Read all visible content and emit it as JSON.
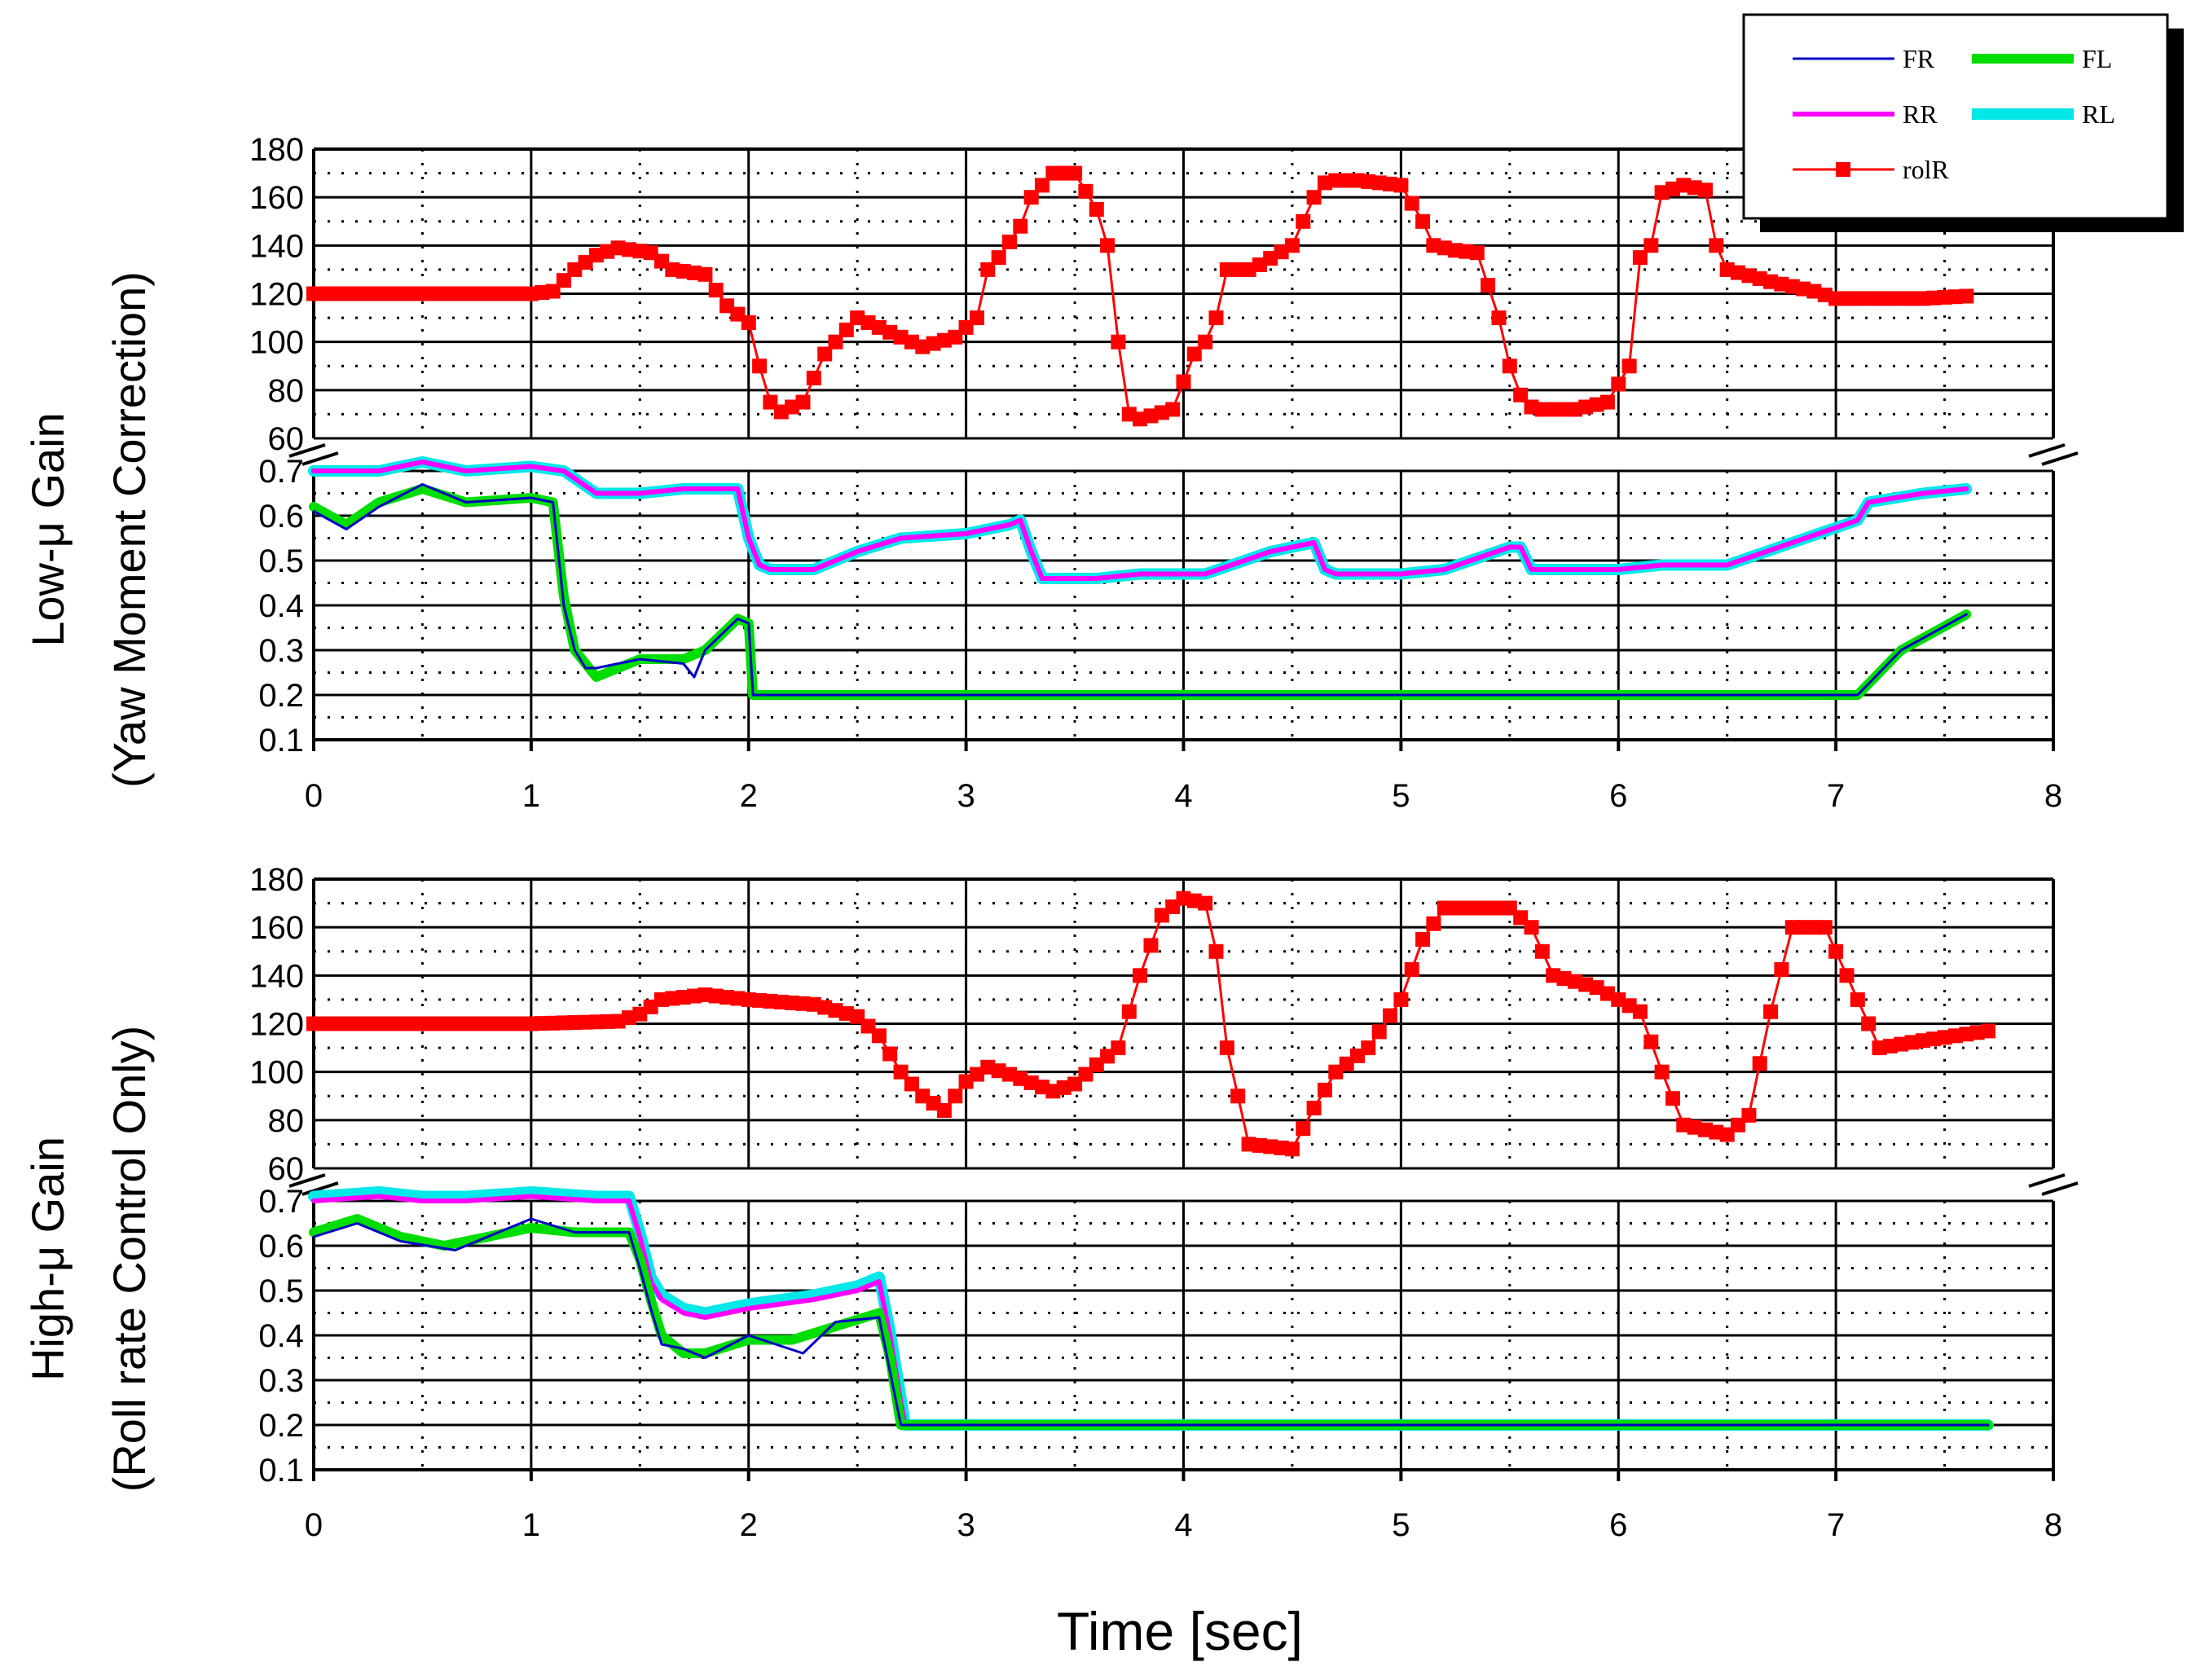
{
  "colors": {
    "FR": "#0000c8",
    "FL": "#00dd00",
    "RR": "#ff00ff",
    "RL": "#00e8e8",
    "rolR": "#ff0000"
  },
  "chart_data": {
    "type": "line",
    "xlabel": "Time [sec]",
    "xlim": [
      0,
      8
    ],
    "xticks": [
      0,
      1,
      2,
      3,
      4,
      5,
      6,
      7,
      8
    ],
    "grid": true,
    "legend": {
      "placement": "top-right",
      "entries": [
        "FR",
        "FL",
        "RR",
        "RL",
        "rolR"
      ]
    },
    "panels": [
      {
        "ylabel_line1": "Low-μ Gain",
        "ylabel_line2": "(Yaw Moment Correction)",
        "upper_axis": {
          "ylim": [
            60,
            180
          ],
          "yticks": [
            60,
            80,
            100,
            120,
            140,
            160,
            180
          ]
        },
        "lower_axis": {
          "ylim": [
            0.1,
            0.7
          ],
          "yticks": [
            0.1,
            0.2,
            0.3,
            0.4,
            0.5,
            0.6,
            0.7
          ]
        },
        "series": [
          {
            "name": "rolR",
            "axis": "upper",
            "x": [
              0,
              0.5,
              1.0,
              1.1,
              1.2,
              1.3,
              1.4,
              1.55,
              1.65,
              1.8,
              1.9,
              2.0,
              2.05,
              2.1,
              2.15,
              2.25,
              2.35,
              2.5,
              2.65,
              2.8,
              2.95,
              3.05,
              3.1,
              3.15,
              3.25,
              3.3,
              3.4,
              3.5,
              3.6,
              3.65,
              3.7,
              3.75,
              3.8,
              3.95,
              4.05,
              4.1,
              4.15,
              4.2,
              4.3,
              4.35,
              4.5,
              4.55,
              4.6,
              4.65,
              4.7,
              4.8,
              5.0,
              5.1,
              5.15,
              5.25,
              5.35,
              5.45,
              5.5,
              5.55,
              5.6,
              5.65,
              5.8,
              5.95,
              6.05,
              6.1,
              6.15,
              6.2,
              6.3,
              6.4,
              6.45,
              6.5,
              6.7,
              6.9,
              7.0,
              7.2,
              7.4,
              7.6
            ],
            "y": [
              120,
              120,
              120,
              121,
              130,
              136,
              139,
              137,
              130,
              128,
              115,
              108,
              90,
              75,
              71,
              75,
              95,
              110,
              104,
              98,
              102,
              110,
              130,
              135,
              148,
              160,
              170,
              170,
              155,
              140,
              100,
              70,
              68,
              72,
              95,
              100,
              110,
              130,
              130,
              132,
              140,
              150,
              160,
              166,
              167,
              167,
              165,
              150,
              140,
              138,
              137,
              110,
              90,
              78,
              73,
              72,
              72,
              75,
              90,
              135,
              140,
              162,
              165,
              163,
              140,
              130,
              125,
              121,
              118,
              118,
              118,
              119
            ]
          },
          {
            "name": "RR",
            "axis": "lower",
            "x": [
              0,
              0.3,
              0.5,
              0.7,
              1.0,
              1.15,
              1.3,
              1.5,
              1.7,
              1.95,
              2.0,
              2.05,
              2.1,
              2.3,
              2.5,
              2.7,
              3.0,
              3.2,
              3.25,
              3.3,
              3.35,
              3.6,
              3.8,
              4.1,
              4.4,
              4.6,
              4.65,
              4.7,
              5.0,
              5.2,
              5.5,
              5.55,
              5.6,
              6.0,
              6.2,
              6.3,
              6.5,
              6.8,
              7.1,
              7.15,
              7.4,
              7.6
            ],
            "y": [
              0.7,
              0.7,
              0.72,
              0.7,
              0.71,
              0.7,
              0.65,
              0.65,
              0.66,
              0.66,
              0.55,
              0.49,
              0.48,
              0.48,
              0.52,
              0.55,
              0.56,
              0.58,
              0.59,
              0.52,
              0.46,
              0.46,
              0.47,
              0.47,
              0.52,
              0.54,
              0.48,
              0.47,
              0.47,
              0.48,
              0.53,
              0.53,
              0.48,
              0.48,
              0.49,
              0.49,
              0.49,
              0.54,
              0.59,
              0.63,
              0.65,
              0.66
            ]
          },
          {
            "name": "RL",
            "axis": "lower",
            "x": [
              0,
              0.3,
              0.5,
              0.7,
              1.0,
              1.15,
              1.3,
              1.5,
              1.7,
              1.95,
              2.0,
              2.05,
              2.1,
              2.3,
              2.5,
              2.7,
              3.0,
              3.2,
              3.25,
              3.3,
              3.35,
              3.6,
              3.8,
              4.1,
              4.4,
              4.6,
              4.65,
              4.7,
              5.0,
              5.2,
              5.5,
              5.55,
              5.6,
              6.0,
              6.2,
              6.3,
              6.5,
              6.8,
              7.1,
              7.15,
              7.4,
              7.6
            ],
            "y": [
              0.7,
              0.7,
              0.72,
              0.7,
              0.71,
              0.7,
              0.65,
              0.65,
              0.66,
              0.66,
              0.55,
              0.49,
              0.48,
              0.48,
              0.52,
              0.55,
              0.56,
              0.58,
              0.59,
              0.52,
              0.46,
              0.46,
              0.47,
              0.47,
              0.52,
              0.54,
              0.48,
              0.47,
              0.47,
              0.48,
              0.53,
              0.53,
              0.48,
              0.48,
              0.49,
              0.49,
              0.49,
              0.54,
              0.59,
              0.63,
              0.65,
              0.66
            ]
          },
          {
            "name": "FL",
            "axis": "lower",
            "x": [
              0,
              0.15,
              0.3,
              0.5,
              0.7,
              1.0,
              1.1,
              1.15,
              1.2,
              1.25,
              1.3,
              1.5,
              1.7,
              1.8,
              1.95,
              2.0,
              2.02,
              7.1,
              7.3,
              7.6
            ],
            "y": [
              0.62,
              0.58,
              0.63,
              0.66,
              0.63,
              0.64,
              0.63,
              0.42,
              0.3,
              0.27,
              0.24,
              0.28,
              0.28,
              0.3,
              0.37,
              0.36,
              0.2,
              0.2,
              0.3,
              0.38
            ]
          },
          {
            "name": "FR",
            "axis": "lower",
            "x": [
              0,
              0.15,
              0.3,
              0.5,
              0.7,
              1.0,
              1.1,
              1.15,
              1.2,
              1.25,
              1.3,
              1.5,
              1.7,
              1.75,
              1.8,
              1.95,
              2.0,
              2.02,
              7.1,
              7.3,
              7.6
            ],
            "y": [
              0.61,
              0.57,
              0.62,
              0.67,
              0.63,
              0.64,
              0.63,
              0.4,
              0.3,
              0.26,
              0.26,
              0.28,
              0.27,
              0.24,
              0.3,
              0.37,
              0.36,
              0.2,
              0.2,
              0.3,
              0.38
            ]
          }
        ]
      },
      {
        "ylabel_line1": "High-μ Gain",
        "ylabel_line2": "(Roll rate Control Only)",
        "upper_axis": {
          "ylim": [
            60,
            180
          ],
          "yticks": [
            60,
            80,
            100,
            120,
            140,
            160,
            180
          ]
        },
        "lower_axis": {
          "ylim": [
            0.1,
            0.7
          ],
          "yticks": [
            0.1,
            0.2,
            0.3,
            0.4,
            0.5,
            0.6,
            0.7
          ]
        },
        "series": [
          {
            "name": "rolR",
            "axis": "upper",
            "x": [
              0,
              0.5,
              1.0,
              1.4,
              1.5,
              1.6,
              1.8,
              2.0,
              2.3,
              2.5,
              2.6,
              2.7,
              2.8,
              2.9,
              3.0,
              3.1,
              3.2,
              3.4,
              3.5,
              3.6,
              3.7,
              3.8,
              3.9,
              4.0,
              4.1,
              4.15,
              4.2,
              4.3,
              4.5,
              4.6,
              4.7,
              4.85,
              5.0,
              5.1,
              5.2,
              5.5,
              5.6,
              5.7,
              5.9,
              6.1,
              6.2,
              6.3,
              6.5,
              6.6,
              6.7,
              6.8,
              6.95,
              7.0,
              7.05,
              7.2,
              7.4,
              7.7
            ],
            "y": [
              120,
              120,
              120,
              121,
              124,
              130,
              132,
              130,
              128,
              123,
              115,
              100,
              90,
              84,
              96,
              102,
              99,
              92,
              95,
              103,
              110,
              140,
              165,
              172,
              170,
              150,
              110,
              70,
              68,
              85,
              100,
              110,
              130,
              155,
              168,
              168,
              160,
              140,
              135,
              125,
              100,
              78,
              74,
              82,
              125,
              160,
              160,
              150,
              140,
              110,
              113,
              117
            ]
          },
          {
            "name": "RR",
            "axis": "lower",
            "x": [
              0,
              0.3,
              0.5,
              0.7,
              1.0,
              1.3,
              1.45,
              1.5,
              1.55,
              1.6,
              1.7,
              1.8,
              2.0,
              2.3,
              2.5,
              2.6,
              2.65,
              2.7,
              2.72,
              7.7
            ],
            "y": [
              0.7,
              0.71,
              0.7,
              0.7,
              0.71,
              0.7,
              0.7,
              0.62,
              0.52,
              0.48,
              0.45,
              0.44,
              0.46,
              0.48,
              0.5,
              0.52,
              0.4,
              0.25,
              0.2,
              0.2
            ]
          },
          {
            "name": "RL",
            "axis": "lower",
            "x": [
              0,
              0.3,
              0.5,
              0.7,
              1.0,
              1.3,
              1.45,
              1.5,
              1.55,
              1.6,
              1.7,
              1.8,
              2.0,
              2.3,
              2.5,
              2.6,
              2.65,
              2.7,
              2.72,
              7.7
            ],
            "y": [
              0.71,
              0.72,
              0.71,
              0.71,
              0.72,
              0.71,
              0.71,
              0.63,
              0.53,
              0.49,
              0.46,
              0.45,
              0.47,
              0.49,
              0.51,
              0.53,
              0.41,
              0.26,
              0.2,
              0.2
            ]
          },
          {
            "name": "FL",
            "axis": "lower",
            "x": [
              0,
              0.2,
              0.4,
              0.6,
              0.8,
              1.0,
              1.2,
              1.45,
              1.5,
              1.55,
              1.6,
              1.7,
              1.8,
              2.0,
              2.2,
              2.4,
              2.6,
              2.65,
              2.7,
              7.7
            ],
            "y": [
              0.63,
              0.66,
              0.62,
              0.6,
              0.62,
              0.64,
              0.63,
              0.63,
              0.57,
              0.48,
              0.4,
              0.36,
              0.36,
              0.39,
              0.39,
              0.42,
              0.45,
              0.35,
              0.2,
              0.2
            ]
          },
          {
            "name": "FR",
            "axis": "lower",
            "x": [
              0,
              0.2,
              0.4,
              0.65,
              0.8,
              1.0,
              1.2,
              1.45,
              1.5,
              1.55,
              1.6,
              1.7,
              1.8,
              2.0,
              2.25,
              2.4,
              2.6,
              2.65,
              2.7,
              7.7
            ],
            "y": [
              0.62,
              0.65,
              0.61,
              0.59,
              0.62,
              0.66,
              0.63,
              0.63,
              0.55,
              0.46,
              0.38,
              0.37,
              0.35,
              0.4,
              0.36,
              0.43,
              0.44,
              0.32,
              0.2,
              0.2
            ]
          }
        ]
      }
    ]
  }
}
